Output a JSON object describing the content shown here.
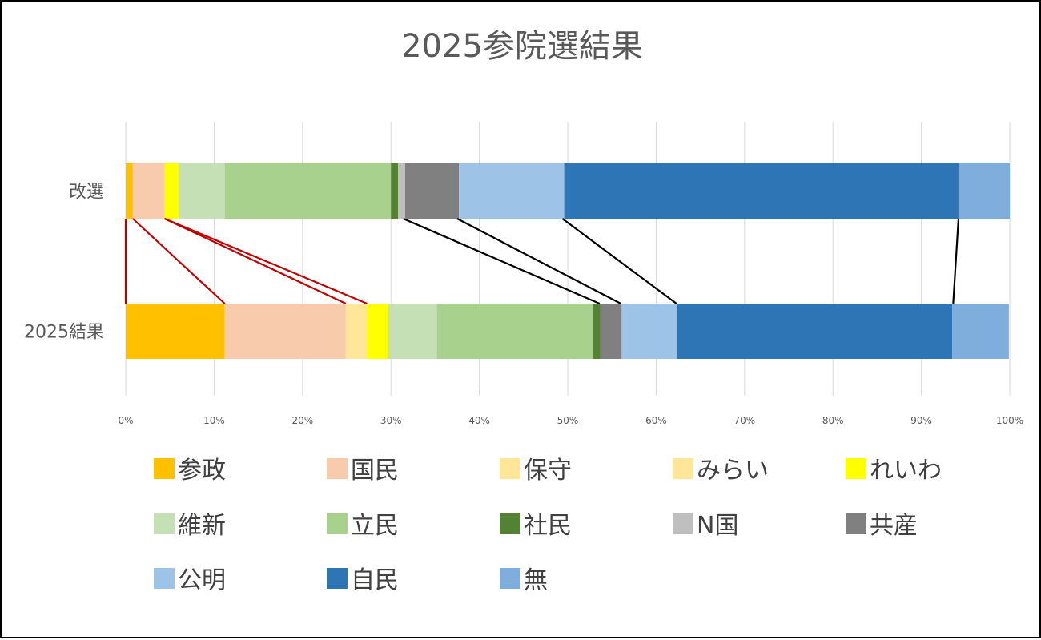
{
  "chart_data": {
    "type": "bar",
    "orientation": "horizontal",
    "stacked": "percent",
    "title": "2025参院選結果",
    "categories": [
      "改選",
      "2025結果"
    ],
    "xlim": [
      0,
      100
    ],
    "x_ticks": [
      "0%",
      "10%",
      "20%",
      "30%",
      "40%",
      "50%",
      "60%",
      "70%",
      "80%",
      "90%",
      "100%"
    ],
    "grid": "vertical",
    "legend_position": "bottom",
    "series": [
      {
        "name": "参政",
        "color": "#FFC000",
        "values": [
          0.8,
          11.2
        ]
      },
      {
        "name": "国民",
        "color": "#F8CBAD",
        "values": [
          3.6,
          13.7
        ]
      },
      {
        "name": "保守",
        "color": "#FFE699",
        "values": [
          0,
          0
        ]
      },
      {
        "name": "みらい",
        "color": "#FFE699",
        "values": [
          0,
          2.4
        ]
      },
      {
        "name": "れいわ",
        "color": "#FFFF00",
        "values": [
          1.6,
          2.4
        ]
      },
      {
        "name": "維新",
        "color": "#C5E0B4",
        "values": [
          5.2,
          5.5
        ]
      },
      {
        "name": "立民",
        "color": "#A9D18E",
        "values": [
          18.8,
          17.7
        ]
      },
      {
        "name": "社民",
        "color": "#548235",
        "values": [
          0.8,
          0.8
        ]
      },
      {
        "name": "N国",
        "color": "#BFBFBF",
        "values": [
          0.8,
          0
        ]
      },
      {
        "name": "共産",
        "color": "#808080",
        "values": [
          6.1,
          2.4
        ]
      },
      {
        "name": "公明",
        "color": "#9DC3E6",
        "values": [
          11.9,
          6.3
        ]
      },
      {
        "name": "自民",
        "color": "#2E75B6",
        "values": [
          44.6,
          31.1
        ]
      },
      {
        "name": "無",
        "color": "#7FAEDC",
        "values": [
          5.8,
          6.4
        ]
      }
    ],
    "connectors": [
      {
        "color": "#C00000",
        "from_pct": 0,
        "to_pct": 0
      },
      {
        "color": "#C00000",
        "from_pct": 0.8,
        "to_pct": 11.2
      },
      {
        "color": "#C00000",
        "from_pct": 4.4,
        "to_pct": 24.9
      },
      {
        "color": "#C00000",
        "from_pct": 4.4,
        "to_pct": 27.3
      },
      {
        "color": "#000000",
        "from_pct": 31.4,
        "to_pct": 53.6
      },
      {
        "color": "#000000",
        "from_pct": 37.5,
        "to_pct": 56.0
      },
      {
        "color": "#000000",
        "from_pct": 49.4,
        "to_pct": 62.3
      },
      {
        "color": "#000000",
        "from_pct": 94.2,
        "to_pct": 93.6
      }
    ]
  }
}
